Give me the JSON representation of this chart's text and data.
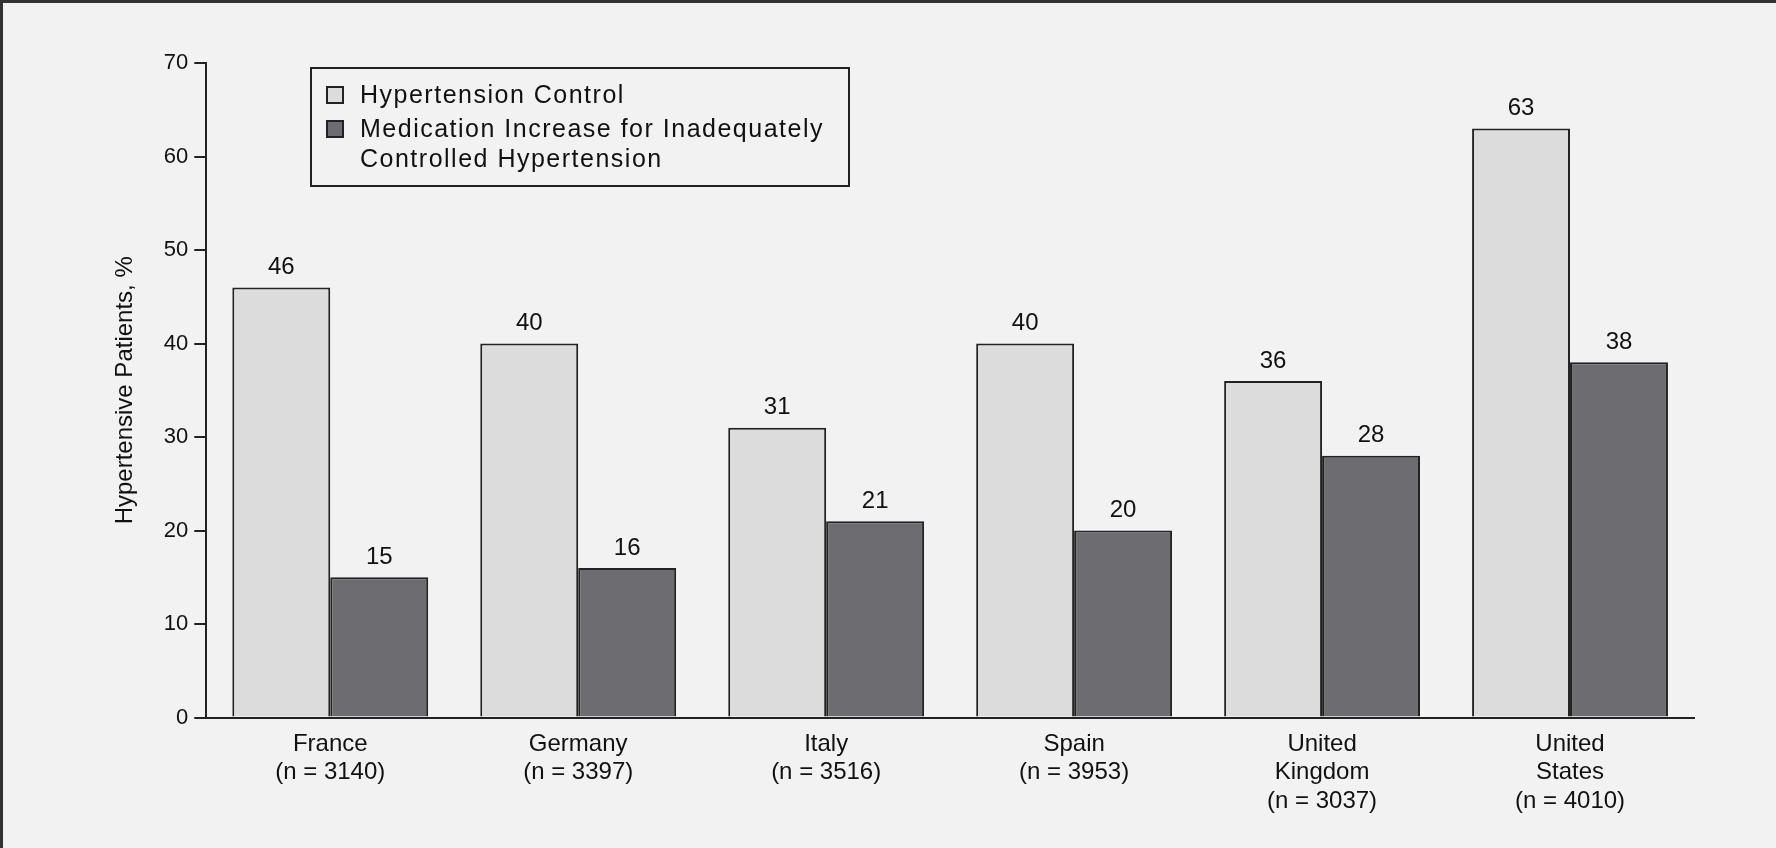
{
  "chart_data": {
    "type": "bar",
    "ylabel": "Hypertensive Patients, %",
    "categories": [
      "France\n(n = 3140)",
      "Germany\n(n = 3397)",
      "Italy\n(n = 3516)",
      "Spain\n(n = 3953)",
      "United\nKingdom\n(n = 3037)",
      "United\nStates\n(n = 4010)"
    ],
    "series": [
      {
        "name": "Hypertension Control",
        "color": "#dcdcdd",
        "values": [
          46,
          40,
          31,
          40,
          36,
          63
        ]
      },
      {
        "name": "Medication Increase for Inadequately Controlled Hypertension",
        "color": "#6d6d71",
        "values": [
          15,
          16,
          21,
          20,
          28,
          38
        ]
      }
    ],
    "ylim": [
      0,
      70
    ],
    "yticks": [
      0,
      10,
      20,
      30,
      40,
      50,
      60,
      70
    ],
    "grid": false,
    "legend": "top left",
    "data_labels": true
  }
}
